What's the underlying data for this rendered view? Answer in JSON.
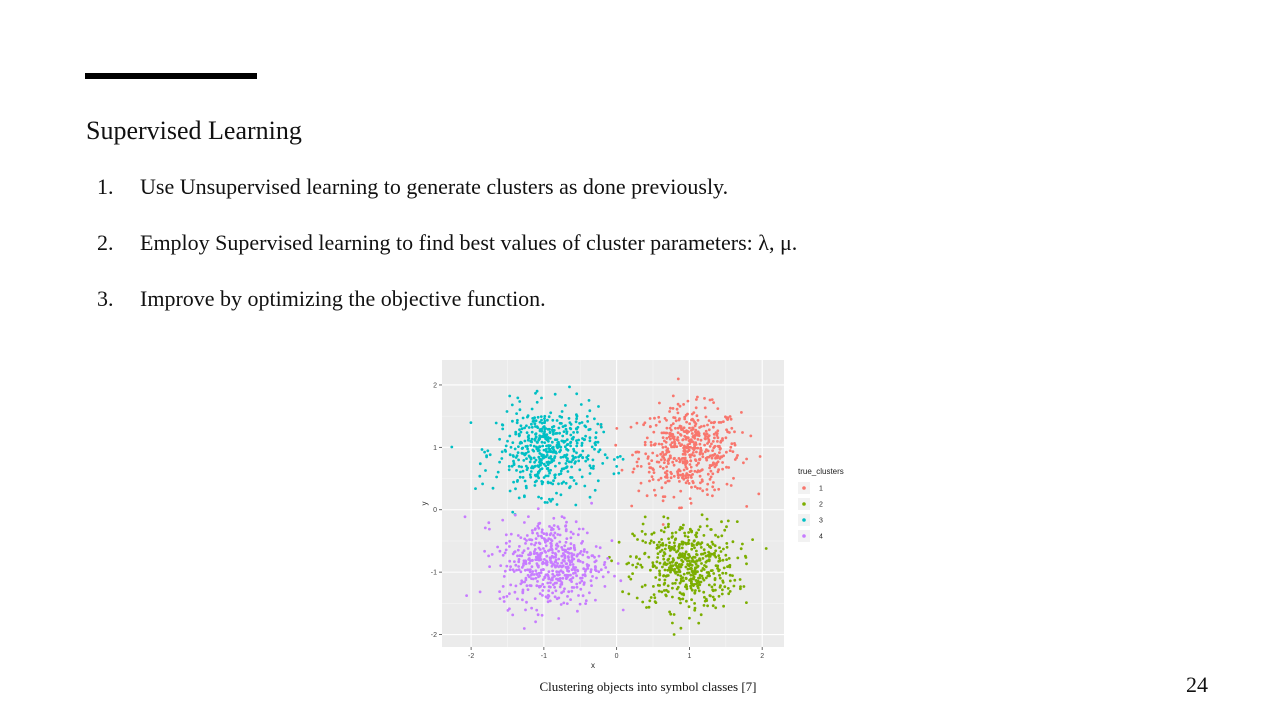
{
  "slide": {
    "title": "Supervised Learning",
    "steps": [
      {
        "number": "1.",
        "text": "Use Unsupervised learning to generate clusters as done previously."
      },
      {
        "number": "2.",
        "text": "Employ Supervised learning to find best values of cluster parameters: λ, μ."
      },
      {
        "number": "3.",
        "text": "Improve by optimizing the objective function."
      }
    ],
    "caption": "Clustering objects into symbol classes [7]",
    "page_number": "24"
  },
  "chart_data": {
    "type": "scatter",
    "xlabel": "x",
    "ylabel": "y",
    "xlim": [
      -2.4,
      2.3
    ],
    "ylim": [
      -2.2,
      2.4
    ],
    "xticks": [
      "-2",
      "-1",
      "0",
      "1",
      "2"
    ],
    "yticks": [
      "2",
      "1",
      "0",
      "-1",
      "-2"
    ],
    "legend_title": "true_clusters",
    "legend_position": "right",
    "background": "#ebebeb",
    "grid": true,
    "series": [
      {
        "name": "1",
        "color": "#f8766d",
        "center": [
          1.0,
          0.95
        ],
        "sd": 0.35
      },
      {
        "name": "2",
        "color": "#7cae00",
        "center": [
          0.95,
          -0.9
        ],
        "sd": 0.35
      },
      {
        "name": "3",
        "color": "#00bfc4",
        "center": [
          -0.95,
          0.95
        ],
        "sd": 0.35
      },
      {
        "name": "4",
        "color": "#c77cff",
        "center": [
          -0.9,
          -0.85
        ],
        "sd": 0.35
      }
    ]
  }
}
